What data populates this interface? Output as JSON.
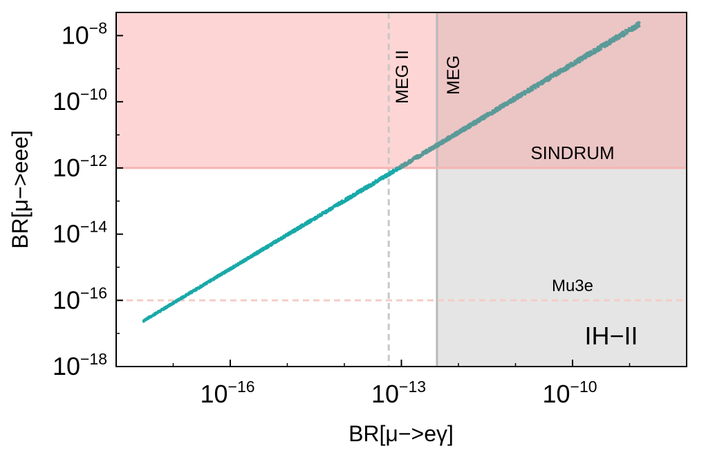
{
  "chart_data": {
    "type": "scatter",
    "title": "",
    "xlabel": "BR[μ−>eγ]",
    "ylabel": "BR[μ−>eee]",
    "x_scale": "log",
    "y_scale": "log",
    "xlim": [
      1e-18,
      1e-08
    ],
    "ylim": [
      1e-18,
      5e-08
    ],
    "x_ticks": [
      {
        "base": "10",
        "exp": "−16",
        "value": 1e-16
      },
      {
        "base": "10",
        "exp": "−13",
        "value": 1e-13
      },
      {
        "base": "10",
        "exp": "−10",
        "value": 1e-10
      }
    ],
    "y_ticks": [
      {
        "base": "10",
        "exp": "−8",
        "value": 1e-08
      },
      {
        "base": "10",
        "exp": "−10",
        "value": 1e-10
      },
      {
        "base": "10",
        "exp": "−12",
        "value": 1e-12
      },
      {
        "base": "10",
        "exp": "−14",
        "value": 1e-14
      },
      {
        "base": "10",
        "exp": "−16",
        "value": 1e-16
      },
      {
        "base": "10",
        "exp": "−18",
        "value": 1e-18
      }
    ],
    "grid": false,
    "scatter_band": {
      "color_below": "#1aa9a9",
      "color_above": "#5b9a98",
      "x_start": 3e-18,
      "x_end": 1.5e-09,
      "log_slope": 1.037,
      "log_intercept_at_xm13": -11.9,
      "y_start": 2.2e-17,
      "y_end": 4e-09
    },
    "regions": [
      {
        "label": "SINDRUM",
        "y_min": 1e-12,
        "color": "#fdd5d5"
      },
      {
        "label": "MEG",
        "x_min": 4.2e-13,
        "color": "#e5e5e5"
      }
    ],
    "limit_lines": [
      {
        "label": "MEG II",
        "x": 6e-14,
        "style": "dashed",
        "color": "#c8c8c8"
      },
      {
        "label": "MEG",
        "x": 4.2e-13,
        "style": "solid",
        "color": "#b8b8b8"
      },
      {
        "label": "SINDRUM",
        "y": 1e-12,
        "style": "solid",
        "color": "#f5b5b5"
      },
      {
        "label": "Mu3e",
        "y": 1e-16,
        "style": "dashed",
        "color": "#f4cdc6"
      }
    ],
    "annotations": [
      {
        "text": "SINDRUM",
        "x": 1e-10,
        "y": 3e-12
      },
      {
        "text": "Mu3e",
        "x": 1e-10,
        "y": 5e-16
      },
      {
        "text": "IH−II",
        "x": 3e-10,
        "y": 1e-17
      },
      {
        "text": "MEG II",
        "x": 6e-14,
        "y": 1e-09
      },
      {
        "text": "MEG",
        "x": 4.2e-13,
        "y": 1e-09
      }
    ]
  }
}
